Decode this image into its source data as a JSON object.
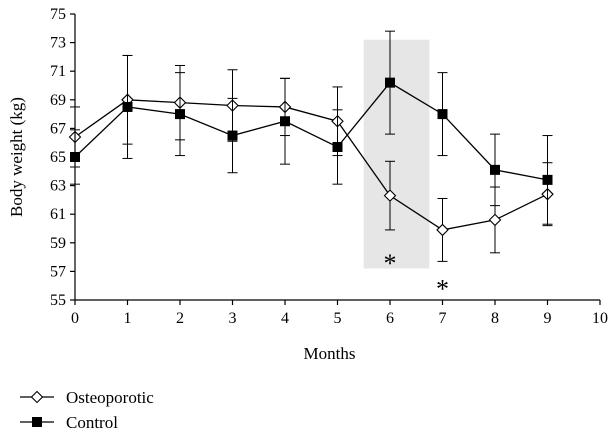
{
  "chart_data": {
    "type": "line",
    "xlabel": "Months",
    "ylabel": "Body weight (kg)",
    "xlim": [
      0,
      10
    ],
    "ylim": [
      55,
      75
    ],
    "x_ticks": [
      "0",
      "1",
      "2",
      "3",
      "4",
      "5",
      "6",
      "7",
      "8",
      "9",
      "10"
    ],
    "y_ticks": [
      "55",
      "57",
      "59",
      "61",
      "63",
      "65",
      "67",
      "69",
      "71",
      "73",
      "75"
    ],
    "grid": false,
    "legend_position": "bottom-left",
    "highlight_region": {
      "x": [
        5.5,
        6.75
      ],
      "y": [
        57.2,
        73.2
      ],
      "color": "#e6e6e6"
    },
    "annotations": [
      {
        "text": "*",
        "x": 6,
        "y": 57.8
      },
      {
        "text": "*",
        "x": 7,
        "y": 56.0
      }
    ],
    "series": [
      {
        "name": "Osteoporotic",
        "marker": "open-diamond",
        "color": "#000000",
        "x": [
          0,
          1,
          2,
          3,
          4,
          5,
          6,
          7,
          8,
          9
        ],
        "y": [
          66.4,
          69.0,
          68.8,
          68.6,
          68.5,
          67.5,
          62.3,
          59.9,
          60.6,
          62.4
        ],
        "error": [
          2.1,
          3.1,
          2.6,
          2.5,
          2.0,
          2.4,
          2.4,
          2.2,
          2.3,
          2.2
        ]
      },
      {
        "name": "Control",
        "marker": "filled-square",
        "color": "#000000",
        "x": [
          0,
          1,
          2,
          3,
          4,
          5,
          6,
          7,
          8,
          9
        ],
        "y": [
          65.0,
          68.5,
          68.0,
          66.5,
          67.5,
          65.7,
          70.2,
          68.0,
          64.1,
          63.4
        ],
        "error": [
          1.9,
          3.6,
          2.9,
          2.6,
          3.0,
          2.6,
          3.6,
          2.9,
          2.5,
          3.1
        ]
      }
    ]
  }
}
